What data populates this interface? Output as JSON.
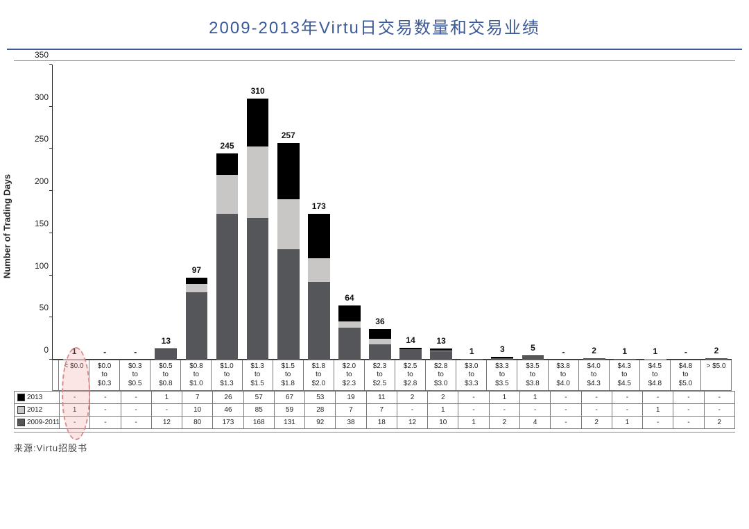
{
  "title": "2009-2013年Virtu日交易数量和交易业绩",
  "title_color": "#3c5a9a",
  "title_fontsize": 24,
  "source": "来源:Virtu招股书",
  "chart": {
    "type": "stacked-bar",
    "ylabel": "Number of Trading Days",
    "ylim": [
      0,
      350
    ],
    "ytick_step": 50,
    "yticks": [
      0,
      50,
      100,
      150,
      200,
      250,
      300,
      350
    ],
    "background_color": "#ffffff",
    "axis_color": "#222222",
    "categories": [
      "< $0.0",
      "$0.0\nto\n$0.3",
      "$0.3\nto\n$0.5",
      "$0.5\nto\n$0.8",
      "$0.8\nto\n$1.0",
      "$1.0\nto\n$1.3",
      "$1.3\nto\n$1.5",
      "$1.5\nto\n$1.8",
      "$1.8\nto\n$2.0",
      "$2.0\nto\n$2.3",
      "$2.3\nto\n$2.5",
      "$2.5\nto\n$2.8",
      "$2.8\nto\n$3.0",
      "$3.0\nto\n$3.3",
      "$3.3\nto\n$3.5",
      "$3.5\nto\n$3.8",
      "$3.8\nto\n$4.0",
      "$4.0\nto\n$4.3",
      "$4.3\nto\n$4.5",
      "$4.5\nto\n$4.8",
      "$4.8\nto\n$5.0",
      "> $5.0"
    ],
    "totals_labels": [
      "1",
      "-",
      "-",
      "13",
      "97",
      "245",
      "310",
      "257",
      "173",
      "64",
      "36",
      "14",
      "13",
      "1",
      "3",
      "5",
      "-",
      "2",
      "1",
      "1",
      "-",
      "2"
    ],
    "totals_values": [
      1,
      0,
      0,
      13,
      97,
      245,
      310,
      257,
      173,
      64,
      36,
      14,
      13,
      1,
      3,
      5,
      0,
      2,
      1,
      1,
      0,
      2
    ],
    "series": [
      {
        "name": "2009-2011",
        "color": "#55565a",
        "values": [
          0,
          0,
          0,
          12,
          80,
          173,
          168,
          131,
          92,
          38,
          18,
          12,
          10,
          1,
          2,
          4,
          0,
          2,
          1,
          0,
          0,
          2
        ],
        "labels": [
          "-",
          "-",
          "-",
          "12",
          "80",
          "173",
          "168",
          "131",
          "92",
          "38",
          "18",
          "12",
          "10",
          "1",
          "2",
          "4",
          "-",
          "2",
          "1",
          "-",
          "-",
          "2"
        ]
      },
      {
        "name": "2012",
        "color": "#c9c7c5",
        "values": [
          1,
          0,
          0,
          0,
          10,
          46,
          85,
          59,
          28,
          7,
          7,
          0,
          1,
          0,
          0,
          0,
          0,
          0,
          0,
          1,
          0,
          0
        ],
        "labels": [
          "1",
          "-",
          "-",
          "-",
          "10",
          "46",
          "85",
          "59",
          "28",
          "7",
          "7",
          "-",
          "1",
          "-",
          "-",
          "-",
          "-",
          "-",
          "-",
          "1",
          "-",
          "-"
        ]
      },
      {
        "name": "2013",
        "color": "#000000",
        "values": [
          0,
          0,
          0,
          1,
          7,
          26,
          57,
          67,
          53,
          19,
          11,
          2,
          2,
          0,
          1,
          1,
          0,
          0,
          0,
          0,
          0,
          0
        ],
        "labels": [
          "-",
          "-",
          "-",
          "1",
          "7",
          "26",
          "57",
          "67",
          "53",
          "19",
          "11",
          "2",
          "2",
          "-",
          "1",
          "1",
          "-",
          "-",
          "-",
          "-",
          "-",
          "-"
        ]
      }
    ],
    "highlight_column_index": 0,
    "highlight_color": "rgba(240,150,150,0.25)",
    "highlight_border": "#d88"
  },
  "table_row_headers": [
    "2013",
    "2012",
    "2009-2011"
  ]
}
